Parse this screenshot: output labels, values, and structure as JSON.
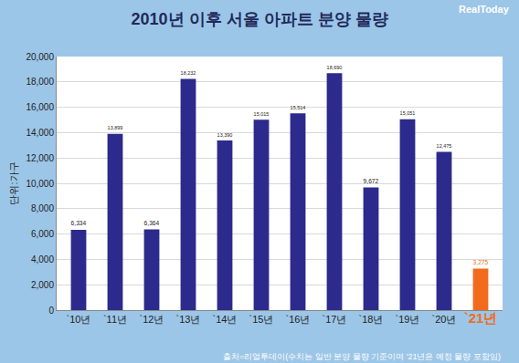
{
  "chart_data": {
    "type": "bar",
    "title": "2010년 이후 서울 아파트 분양 물량",
    "y_label": "단위:가구",
    "categories": [
      "`10년",
      "`11년",
      "`12년",
      "`13년",
      "`14년",
      "`15년",
      "`16년",
      "`17년",
      "`18년",
      "`19년",
      "`20년",
      "`21년"
    ],
    "values": [
      6334,
      13899,
      6364,
      18232,
      13390,
      15015,
      15514,
      18690,
      9672,
      15051,
      12475,
      3275
    ],
    "value_labels": [
      "6,334",
      "13,899",
      "6,364",
      "18,232",
      "13,390",
      "15,015",
      "15,514",
      "18,690",
      "9,672",
      "15,051",
      "12,475",
      "3,275"
    ],
    "colors": [
      "#2c2a8c",
      "#2c2a8c",
      "#2c2a8c",
      "#2c2a8c",
      "#2c2a8c",
      "#2c2a8c",
      "#2c2a8c",
      "#2c2a8c",
      "#2c2a8c",
      "#2c2a8c",
      "#2c2a8c",
      "#f26b1d"
    ],
    "ylim": [
      0,
      20000
    ],
    "yticks": [
      0,
      {
        "value": 2000,
        "label": "2,000"
      },
      {
        "value": 4000,
        "label": "4,000"
      },
      {
        "value": 6000,
        "label": "6,000"
      },
      {
        "value": 8000,
        "label": "8,000"
      },
      {
        "value": 10000,
        "label": "10,000"
      },
      {
        "value": 12000,
        "label": "12,000"
      },
      {
        "value": 14000,
        "label": "14,000"
      },
      {
        "value": 16000,
        "label": "16,000"
      },
      {
        "value": 18000,
        "label": "18,000"
      },
      {
        "value": 20000,
        "label": "20,000"
      }
    ],
    "grid": true,
    "data_labels": true,
    "annotations": [
      "출처=리얼투데이(수치는 일반 분양 물량 기준이며 '21년은 예정 물량 포함임)",
      "RealToday"
    ]
  }
}
